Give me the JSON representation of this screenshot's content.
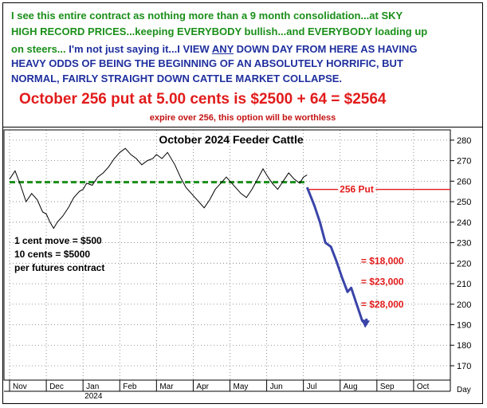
{
  "commentary": {
    "line1": "I see this entire contract as nothing more than a 9 month consolidation...at SKY",
    "line2": "HIGH RECORD PRICES...keeping EVERYBODY bullish...and EVERYBODY loading up",
    "line3_green": "on steers...",
    "line3_blue_a": " I'm not just saying it...I VIEW ",
    "line3_blue_any": "ANY",
    "line3_blue_b": " DOWN DAY FROM HERE AS HAVING",
    "line4": "HEAVY ODDS OF BEING THE BEGINNING OF AN ABSOLUTELY HORRIFIC, BUT",
    "line5": "NORMAL, FAIRLY STRAIGHT DOWN CATTLE MARKET COLLAPSE.",
    "headline": "October 256 put at 5.00 cents is $2500 + 64 = $2564",
    "subline": "expire over 256, this option will be worthless"
  },
  "chart_data": {
    "type": "line",
    "title": "October 2024 Feeder Cattle",
    "x_labels": [
      "Nov",
      "Dec",
      "Jan",
      "Feb",
      "Mar",
      "Apr",
      "May",
      "Jun",
      "Jul",
      "Aug",
      "Sep",
      "Oct"
    ],
    "year_label": "2024",
    "x_axis_label": "Day",
    "y_ticks": [
      170,
      180,
      190,
      200,
      210,
      220,
      230,
      240,
      250,
      260,
      270,
      280
    ],
    "ylim": [
      163,
      285
    ],
    "grid": true,
    "price_path": [
      [
        0.0,
        261
      ],
      [
        0.15,
        265
      ],
      [
        0.3,
        258
      ],
      [
        0.45,
        250
      ],
      [
        0.6,
        254
      ],
      [
        0.75,
        251
      ],
      [
        0.9,
        245
      ],
      [
        1.0,
        244
      ],
      [
        1.1,
        240
      ],
      [
        1.2,
        237
      ],
      [
        1.3,
        240
      ],
      [
        1.45,
        243
      ],
      [
        1.6,
        247
      ],
      [
        1.75,
        252
      ],
      [
        1.9,
        255
      ],
      [
        2.0,
        256
      ],
      [
        2.1,
        259
      ],
      [
        2.25,
        258
      ],
      [
        2.4,
        262
      ],
      [
        2.55,
        264
      ],
      [
        2.7,
        267
      ],
      [
        2.85,
        271
      ],
      [
        3.0,
        274
      ],
      [
        3.15,
        276
      ],
      [
        3.3,
        273
      ],
      [
        3.45,
        271
      ],
      [
        3.6,
        268
      ],
      [
        3.75,
        270
      ],
      [
        3.9,
        271
      ],
      [
        4.0,
        273
      ],
      [
        4.15,
        271
      ],
      [
        4.3,
        274
      ],
      [
        4.5,
        268
      ],
      [
        4.65,
        262
      ],
      [
        4.8,
        257
      ],
      [
        5.0,
        253
      ],
      [
        5.15,
        250
      ],
      [
        5.3,
        247
      ],
      [
        5.45,
        251
      ],
      [
        5.6,
        256
      ],
      [
        5.75,
        259
      ],
      [
        5.9,
        262
      ],
      [
        6.0,
        260
      ],
      [
        6.15,
        257
      ],
      [
        6.3,
        254
      ],
      [
        6.45,
        252
      ],
      [
        6.6,
        256
      ],
      [
        6.75,
        261
      ],
      [
        6.9,
        266
      ],
      [
        7.0,
        263
      ],
      [
        7.15,
        259
      ],
      [
        7.3,
        256
      ],
      [
        7.45,
        260
      ],
      [
        7.6,
        264
      ],
      [
        7.75,
        261
      ],
      [
        7.9,
        259
      ],
      [
        8.0,
        262
      ],
      [
        8.1,
        263
      ]
    ],
    "consolidation_level": 259.5,
    "put_strike": 256,
    "put_label": "256 Put",
    "projection_path": [
      [
        8.1,
        257
      ],
      [
        8.3,
        248
      ],
      [
        8.45,
        240
      ],
      [
        8.6,
        230
      ],
      [
        8.75,
        228
      ],
      [
        8.9,
        221
      ],
      [
        9.05,
        213
      ],
      [
        9.2,
        206
      ],
      [
        9.3,
        208
      ],
      [
        9.45,
        200
      ],
      [
        9.6,
        192
      ],
      [
        9.7,
        190
      ],
      [
        9.72,
        193
      ]
    ],
    "left_note": [
      "1 cent move = $500",
      "10 cents = $5000",
      "per futures contract"
    ],
    "profit_labels": [
      {
        "text": "= $18,000",
        "y": 221
      },
      {
        "text": "= $23,000",
        "y": 211
      },
      {
        "text": "= $28,000",
        "y": 200
      }
    ]
  },
  "colors": {
    "green": "#1a8f1a",
    "blue": "#1f2f9e",
    "red": "#e21b1b",
    "price_line": "#000000",
    "projection": "#3a44a8"
  }
}
